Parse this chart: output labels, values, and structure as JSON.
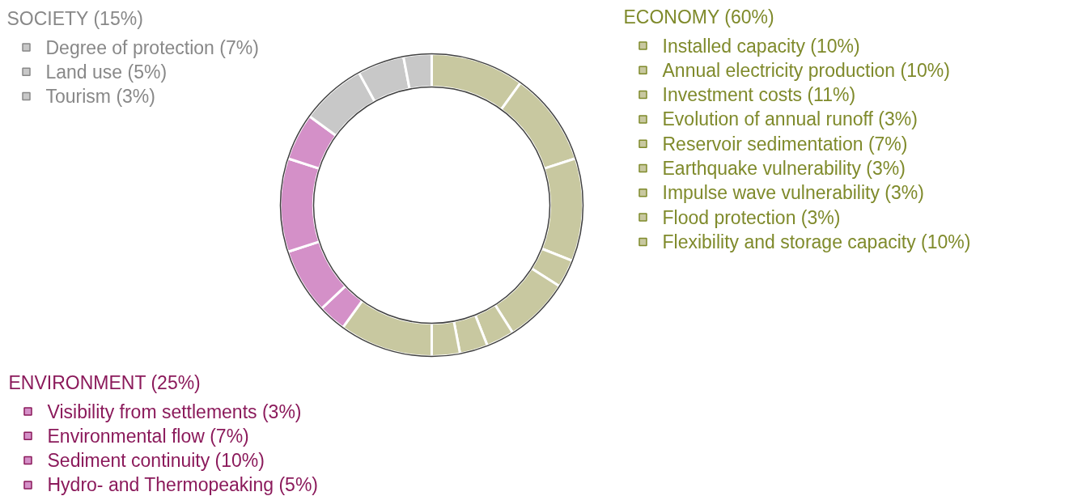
{
  "chart_data": {
    "type": "donut",
    "categories": [
      "Installed capacity (10%)",
      "Annual electricity production (10%)",
      "Investment costs (11%)",
      "Evolution of annual runoff (3%)",
      "Reservoir sedimentation (7%)",
      "Earthquake vulnerability (3%)",
      "Impulse wave vulnerability (3%)",
      "Flood protection (3%)",
      "Flexibility and storage capacity (10%)",
      "Visibility from settlements (3%)",
      "Environmental flow (7%)",
      "Sediment continuity (10%)",
      "Hydro- and Thermopeaking (5%)",
      "Degree of protection (7%)",
      "Land use (5%)",
      "Tourism (3%)"
    ],
    "values": [
      10,
      10,
      11,
      3,
      7,
      3,
      3,
      3,
      10,
      3,
      7,
      10,
      5,
      7,
      5,
      3
    ],
    "colors": [
      "#c8c8a0",
      "#c8c8a0",
      "#c8c8a0",
      "#c8c8a0",
      "#c8c8a0",
      "#c8c8a0",
      "#c8c8a0",
      "#c8c8a0",
      "#c8c8a0",
      "#d490c8",
      "#d490c8",
      "#d490c8",
      "#d490c8",
      "#c8c8c8",
      "#c8c8c8",
      "#c8c8c8"
    ],
    "annotations": [
      "ECONOMY (60%)",
      "ENVIRONMENT (25%)",
      "SOCIETY (15%)"
    ],
    "legend": "right"
  }
}
